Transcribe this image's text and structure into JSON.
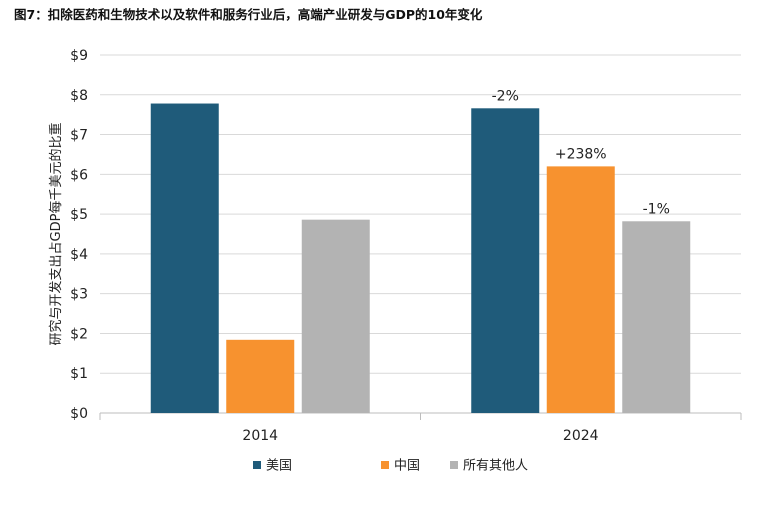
{
  "chart_data": {
    "type": "bar",
    "title": "图7：扣除医药和生物技术以及软件和服务行业后，高端产业研发与GDP的10年变化",
    "ylabel": "研究与开发支出占GDP每千美元的比重",
    "xlabel": "",
    "categories": [
      "2014",
      "2024"
    ],
    "series": [
      {
        "name": "美国",
        "color": "#1f5b7a",
        "values": [
          7.78,
          7.66
        ],
        "labels": [
          "",
          "-2%"
        ]
      },
      {
        "name": "中国",
        "color": "#f7922f",
        "values": [
          1.84,
          6.2
        ],
        "labels": [
          "",
          "+238%"
        ]
      },
      {
        "name": "所有其他人",
        "color": "#b3b3b3",
        "values": [
          4.86,
          4.82
        ],
        "labels": [
          "",
          "-1%"
        ]
      }
    ],
    "ylim": [
      0,
      9
    ],
    "yticks": [
      0,
      1,
      2,
      3,
      4,
      5,
      6,
      7,
      8,
      9
    ],
    "ytick_labels": [
      "$0",
      "$1",
      "$2",
      "$3",
      "$4",
      "$5",
      "$6",
      "$7",
      "$8",
      "$9"
    ],
    "grid": true,
    "legend_position": "bottom-center"
  }
}
